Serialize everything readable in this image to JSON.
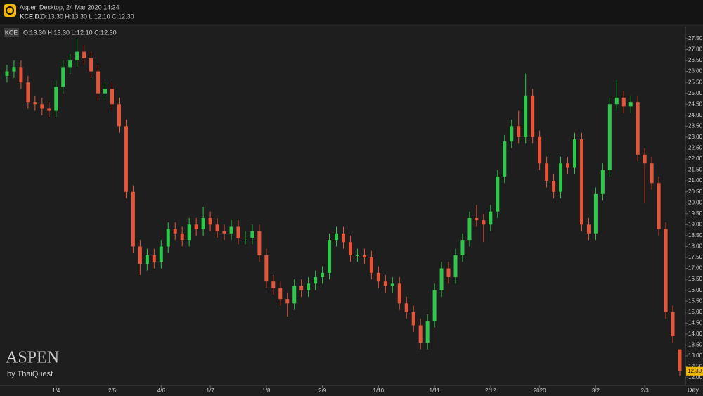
{
  "header": {
    "app": "Aspen Desktop, 24 Mar 2020 14:34",
    "symbol": "KCE,D1",
    "ohlc": "O:13.30 H:13.30 L:12.10 C:12.30"
  },
  "chart_data": {
    "type": "candlestick",
    "symbol": "KCE",
    "ohlc_label": "O:13.30 H:13.30 L:12.10 C:12.30",
    "up_color": "#2ec84a",
    "down_color": "#e5553a",
    "grid": false,
    "axis_side": "right",
    "x_unit_label": "Day",
    "last_label": "12.30",
    "xlim": [
      -1,
      96.8
    ],
    "ylim": [
      11.65,
      27.98
    ],
    "xticks": [
      {
        "value": 7,
        "label": "1/4"
      },
      {
        "value": 15,
        "label": "2/5"
      },
      {
        "value": 22,
        "label": "4/6"
      },
      {
        "value": 29,
        "label": "1/7"
      },
      {
        "value": 37,
        "label": "1/8"
      },
      {
        "value": 45,
        "label": "2/9"
      },
      {
        "value": 53,
        "label": "1/10"
      },
      {
        "value": 61,
        "label": "1/11"
      },
      {
        "value": 69,
        "label": "2/12"
      },
      {
        "value": 76,
        "label": "2020"
      },
      {
        "value": 84,
        "label": "3/2"
      },
      {
        "value": 91,
        "label": "2/3"
      }
    ],
    "yticks": [
      {
        "value": 12,
        "label": "12.00"
      },
      {
        "value": 12.5,
        "label": "12.50"
      },
      {
        "value": 13,
        "label": "13.00"
      },
      {
        "value": 13.5,
        "label": "13.50"
      },
      {
        "value": 14,
        "label": "14.00"
      },
      {
        "value": 14.5,
        "label": "14.50"
      },
      {
        "value": 15,
        "label": "15.00"
      },
      {
        "value": 15.5,
        "label": "15.50"
      },
      {
        "value": 16,
        "label": "16.00"
      },
      {
        "value": 16.5,
        "label": "16.50"
      },
      {
        "value": 17,
        "label": "17.00"
      },
      {
        "value": 17.5,
        "label": "17.50"
      },
      {
        "value": 18,
        "label": "18.00"
      },
      {
        "value": 18.5,
        "label": "18.50"
      },
      {
        "value": 19,
        "label": "19.00"
      },
      {
        "value": 19.5,
        "label": "19.50"
      },
      {
        "value": 20,
        "label": "20.00"
      },
      {
        "value": 20.5,
        "label": "20.50"
      },
      {
        "value": 21,
        "label": "21.00"
      },
      {
        "value": 21.5,
        "label": "21.50"
      },
      {
        "value": 22,
        "label": "22.00"
      },
      {
        "value": 22.5,
        "label": "22.50"
      },
      {
        "value": 23,
        "label": "23.00"
      },
      {
        "value": 23.5,
        "label": "23.50"
      },
      {
        "value": 24,
        "label": "24.00"
      },
      {
        "value": 24.5,
        "label": "24.50"
      },
      {
        "value": 25,
        "label": "25.00"
      },
      {
        "value": 25.5,
        "label": "25.50"
      },
      {
        "value": 26,
        "label": "26.00"
      },
      {
        "value": 26.5,
        "label": "26.50"
      },
      {
        "value": 27,
        "label": "27.00"
      },
      {
        "value": 27.5,
        "label": "27.50"
      }
    ],
    "open": [
      25.8,
      26.0,
      26.2,
      25.5,
      24.6,
      24.5,
      24.3,
      24.2,
      25.3,
      26.2,
      26.5,
      26.9,
      26.6,
      26.0,
      25.0,
      25.2,
      24.5,
      23.5,
      20.5,
      18.0,
      17.2,
      17.6,
      17.3,
      18.0,
      18.8,
      18.6,
      18.3,
      19.0,
      18.8,
      19.3,
      19.0,
      18.7,
      18.6,
      18.9,
      18.4,
      18.4,
      18.7,
      17.6,
      16.4,
      16.1,
      15.6,
      15.4,
      16.2,
      16.0,
      16.3,
      16.6,
      16.8,
      18.3,
      18.6,
      18.2,
      17.6,
      17.6,
      17.5,
      16.8,
      16.4,
      16.2,
      16.3,
      15.4,
      15.0,
      14.4,
      13.6,
      14.6,
      16.0,
      17.0,
      16.6,
      17.6,
      18.3,
      19.3,
      19.2,
      19.0,
      19.6,
      21.2,
      22.8,
      23.5,
      23.0,
      24.9,
      23.0,
      21.8,
      21.0,
      20.5,
      21.8,
      21.6,
      22.9,
      19.0,
      18.6,
      20.4,
      21.5,
      24.5,
      24.8,
      24.4,
      24.6,
      22.2,
      21.8,
      20.9,
      18.8,
      15.0,
      13.3
    ],
    "high": [
      26.3,
      26.5,
      26.5,
      25.8,
      24.9,
      24.8,
      24.6,
      25.6,
      26.5,
      26.8,
      27.5,
      27.2,
      26.9,
      26.3,
      25.5,
      25.5,
      24.8,
      23.8,
      20.8,
      18.3,
      17.9,
      17.9,
      18.3,
      19.1,
      19.1,
      18.9,
      19.3,
      19.3,
      19.8,
      19.6,
      19.3,
      19.0,
      19.2,
      19.2,
      18.7,
      19.0,
      19.0,
      17.9,
      16.7,
      16.4,
      15.9,
      16.5,
      16.5,
      16.6,
      16.9,
      17.1,
      18.6,
      18.9,
      18.9,
      18.5,
      17.9,
      17.9,
      17.8,
      17.1,
      16.7,
      16.6,
      16.6,
      15.7,
      15.3,
      14.7,
      14.9,
      16.3,
      17.3,
      17.3,
      17.9,
      18.6,
      19.6,
      19.9,
      19.5,
      19.9,
      21.5,
      23.1,
      23.8,
      24.2,
      25.9,
      25.2,
      23.3,
      22.1,
      21.3,
      22.1,
      22.1,
      23.2,
      23.2,
      19.3,
      20.7,
      21.8,
      24.8,
      25.6,
      25.1,
      24.9,
      24.9,
      22.5,
      22.1,
      21.2,
      19.1,
      15.3,
      13.3
    ],
    "low": [
      25.5,
      25.7,
      25.2,
      24.3,
      24.2,
      24.0,
      23.9,
      23.9,
      25.0,
      25.9,
      26.2,
      26.3,
      25.7,
      24.7,
      24.7,
      24.2,
      23.2,
      20.2,
      17.7,
      16.7,
      16.9,
      17.0,
      17.0,
      17.7,
      18.3,
      18.0,
      18.0,
      18.5,
      18.5,
      18.7,
      18.4,
      18.3,
      18.3,
      18.1,
      18.1,
      18.1,
      17.3,
      16.1,
      15.8,
      15.3,
      14.8,
      15.1,
      15.7,
      15.7,
      16.0,
      16.3,
      16.5,
      18.0,
      17.9,
      17.3,
      17.3,
      17.2,
      16.5,
      16.1,
      15.9,
      15.9,
      15.1,
      14.7,
      14.1,
      13.3,
      13.3,
      14.3,
      15.7,
      16.3,
      16.3,
      17.3,
      18.0,
      18.9,
      18.2,
      18.7,
      19.3,
      20.9,
      22.5,
      22.7,
      22.7,
      22.7,
      21.5,
      20.7,
      20.2,
      20.2,
      21.3,
      21.3,
      18.7,
      18.3,
      18.3,
      20.1,
      21.2,
      24.2,
      24.1,
      24.1,
      21.9,
      20.0,
      20.6,
      18.5,
      14.7,
      13.6,
      12.1
    ],
    "close": [
      26.0,
      26.2,
      25.5,
      24.6,
      24.5,
      24.3,
      24.2,
      25.3,
      26.2,
      26.5,
      26.9,
      26.6,
      26.0,
      25.0,
      25.2,
      24.5,
      23.5,
      20.5,
      18.0,
      17.2,
      17.6,
      17.3,
      18.0,
      18.8,
      18.6,
      18.3,
      19.0,
      18.8,
      19.3,
      19.0,
      18.7,
      18.6,
      18.9,
      18.4,
      18.4,
      18.7,
      17.6,
      16.4,
      16.1,
      15.6,
      15.4,
      16.2,
      16.0,
      16.3,
      16.6,
      16.8,
      18.3,
      18.6,
      18.2,
      17.6,
      17.6,
      17.5,
      16.8,
      16.4,
      16.2,
      16.3,
      15.4,
      15.0,
      14.4,
      13.6,
      14.6,
      16.0,
      17.0,
      16.6,
      17.6,
      18.3,
      19.3,
      19.2,
      19.0,
      19.6,
      21.2,
      22.8,
      23.5,
      23.0,
      24.9,
      23.0,
      21.8,
      21.0,
      20.5,
      21.8,
      21.6,
      22.9,
      19.0,
      18.6,
      20.4,
      21.5,
      24.5,
      24.8,
      24.4,
      24.6,
      22.2,
      21.8,
      20.9,
      18.8,
      15.0,
      13.9,
      12.3
    ]
  },
  "watermark": {
    "brand": "ASPEN",
    "byline": "by ThaiQuest"
  }
}
